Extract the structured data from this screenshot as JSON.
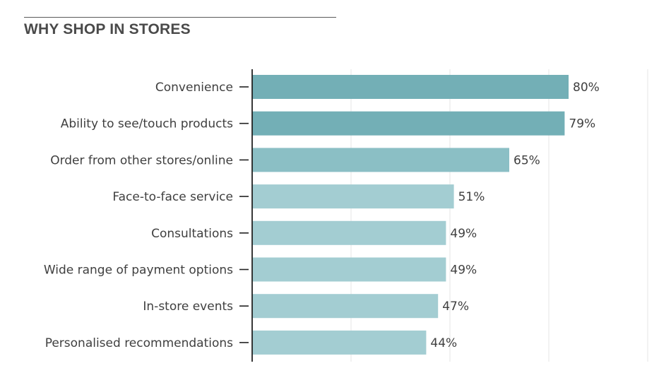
{
  "chart_data": {
    "type": "bar",
    "orientation": "horizontal",
    "title": "WHY SHOP IN STORES",
    "categories": [
      "Convenience",
      "Ability to see/touch products",
      "Order from other stores/online",
      "Face-to-face service",
      "Consultations",
      "Wide range of payment options",
      "In-store events",
      "Personalised recommendations"
    ],
    "values": [
      80,
      79,
      65,
      51,
      49,
      49,
      47,
      44
    ],
    "value_labels": [
      "80%",
      "79%",
      "65%",
      "51%",
      "49%",
      "49%",
      "47%",
      "44%"
    ],
    "xlim": [
      0,
      100
    ],
    "grid": true,
    "colors": {
      "dark": "#73afb6",
      "medium": "#8bbfc5",
      "light": "#a3cdd2",
      "grid": "#e6e6e6",
      "axis": "#222222"
    },
    "bar_color_keys": [
      "dark",
      "dark",
      "medium",
      "light",
      "light",
      "light",
      "light",
      "light"
    ]
  }
}
